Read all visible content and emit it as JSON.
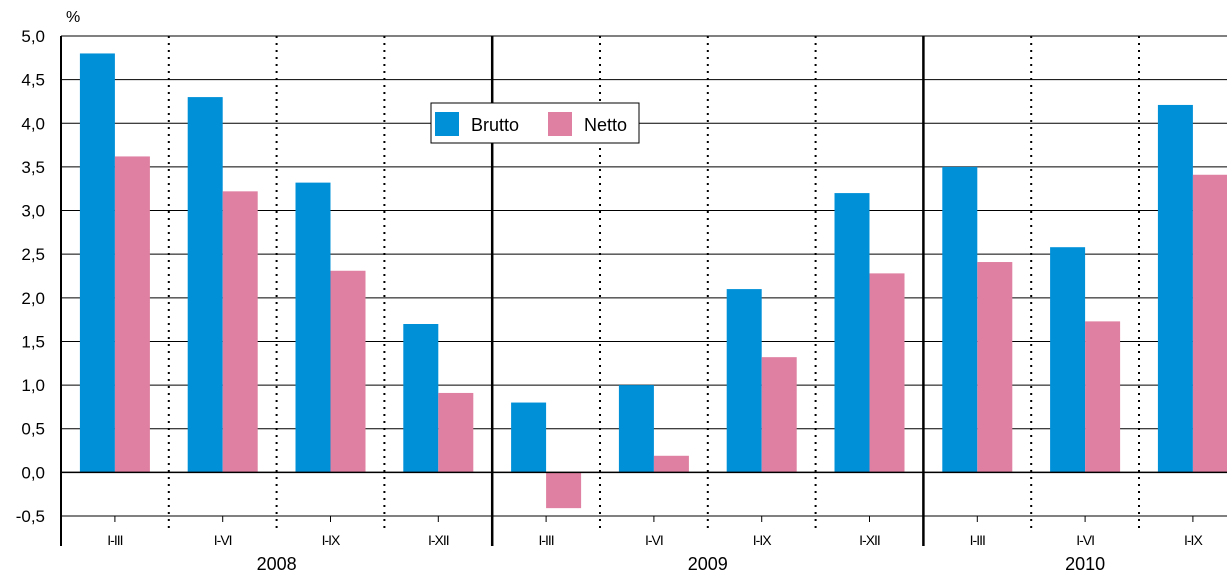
{
  "chart_data": {
    "type": "bar",
    "unit_label": "%",
    "ylim": [
      -0.5,
      5.0
    ],
    "y_ticks": [
      "5,0",
      "4,5",
      "4,0",
      "3,5",
      "3,0",
      "2,5",
      "2,0",
      "1,5",
      "1,0",
      "0,5",
      "0,0",
      "-0,5"
    ],
    "y_tick_values": [
      5.0,
      4.5,
      4.0,
      3.5,
      3.0,
      2.5,
      2.0,
      1.5,
      1.0,
      0.5,
      0.0,
      -0.5
    ],
    "grid": true,
    "legend_position": "top-center",
    "categories": [
      "I-III",
      "I-VI",
      "I-IX",
      "I-XII",
      "I-III",
      "I-VI",
      "I-IX",
      "I-XII",
      "I-III",
      "I-VI",
      "I-IX"
    ],
    "groups": [
      {
        "label": "2008",
        "count": 4
      },
      {
        "label": "2009",
        "count": 4
      },
      {
        "label": "2010",
        "count": 3
      }
    ],
    "series": [
      {
        "name": "Brutto",
        "color": "#0090d8",
        "values": [
          4.8,
          4.3,
          3.32,
          1.7,
          0.8,
          1.0,
          2.1,
          3.2,
          3.5,
          2.58,
          4.21
        ]
      },
      {
        "name": "Netto",
        "color": "#df7fa1",
        "values": [
          3.62,
          3.22,
          2.31,
          0.91,
          -0.41,
          0.19,
          1.32,
          2.28,
          2.41,
          1.73,
          3.41
        ]
      }
    ]
  }
}
